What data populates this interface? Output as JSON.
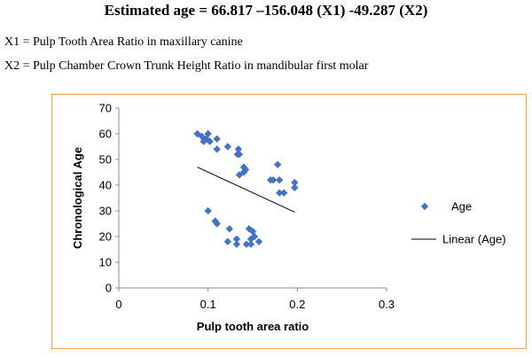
{
  "header": {
    "equation": "Estimated age = 66.817 –156.048 (X1) -49.287 (X2)",
    "x1_definition": "X1 = Pulp Tooth Area Ratio in maxillary canine",
    "x2_definition": "X2 = Pulp Chamber Crown Trunk Height Ratio in mandibular first molar"
  },
  "colors": {
    "marker": "#4472c4",
    "trendline": "#000000",
    "frame": "#f3a14c"
  },
  "chart_data": {
    "type": "scatter",
    "title": "",
    "xlabel": "Pulp tooth area ratio",
    "ylabel": "Chronological Age",
    "xlim": [
      0,
      0.3
    ],
    "ylim": [
      0,
      70
    ],
    "xticks": [
      "0",
      "0.1",
      "0.2",
      "0.3"
    ],
    "yticks": [
      "0",
      "10",
      "20",
      "30",
      "40",
      "50",
      "60",
      "70"
    ],
    "grid": false,
    "legend_position": "right",
    "series": [
      {
        "name": "Age",
        "marker": "diamond",
        "points": [
          [
            0.088,
            60
          ],
          [
            0.093,
            59
          ],
          [
            0.095,
            57
          ],
          [
            0.098,
            58
          ],
          [
            0.1,
            60
          ],
          [
            0.102,
            57
          ],
          [
            0.11,
            58
          ],
          [
            0.11,
            54
          ],
          [
            0.122,
            55
          ],
          [
            0.133,
            52
          ],
          [
            0.134,
            54
          ],
          [
            0.135,
            52
          ],
          [
            0.135,
            44
          ],
          [
            0.14,
            47
          ],
          [
            0.14,
            45
          ],
          [
            0.142,
            46
          ],
          [
            0.17,
            42
          ],
          [
            0.173,
            42
          ],
          [
            0.178,
            48
          ],
          [
            0.18,
            42
          ],
          [
            0.18,
            37
          ],
          [
            0.185,
            37
          ],
          [
            0.197,
            41
          ],
          [
            0.197,
            39
          ],
          [
            0.1,
            30
          ],
          [
            0.108,
            26
          ],
          [
            0.11,
            25
          ],
          [
            0.124,
            23
          ],
          [
            0.122,
            18
          ],
          [
            0.132,
            19
          ],
          [
            0.132,
            17
          ],
          [
            0.143,
            17
          ],
          [
            0.146,
            23
          ],
          [
            0.148,
            17
          ],
          [
            0.148,
            19
          ],
          [
            0.15,
            22
          ],
          [
            0.152,
            20
          ],
          [
            0.157,
            18
          ]
        ]
      },
      {
        "name": "Linear (Age)",
        "type": "line",
        "points": [
          [
            0.088,
            47
          ],
          [
            0.197,
            29.5
          ]
        ]
      }
    ]
  }
}
